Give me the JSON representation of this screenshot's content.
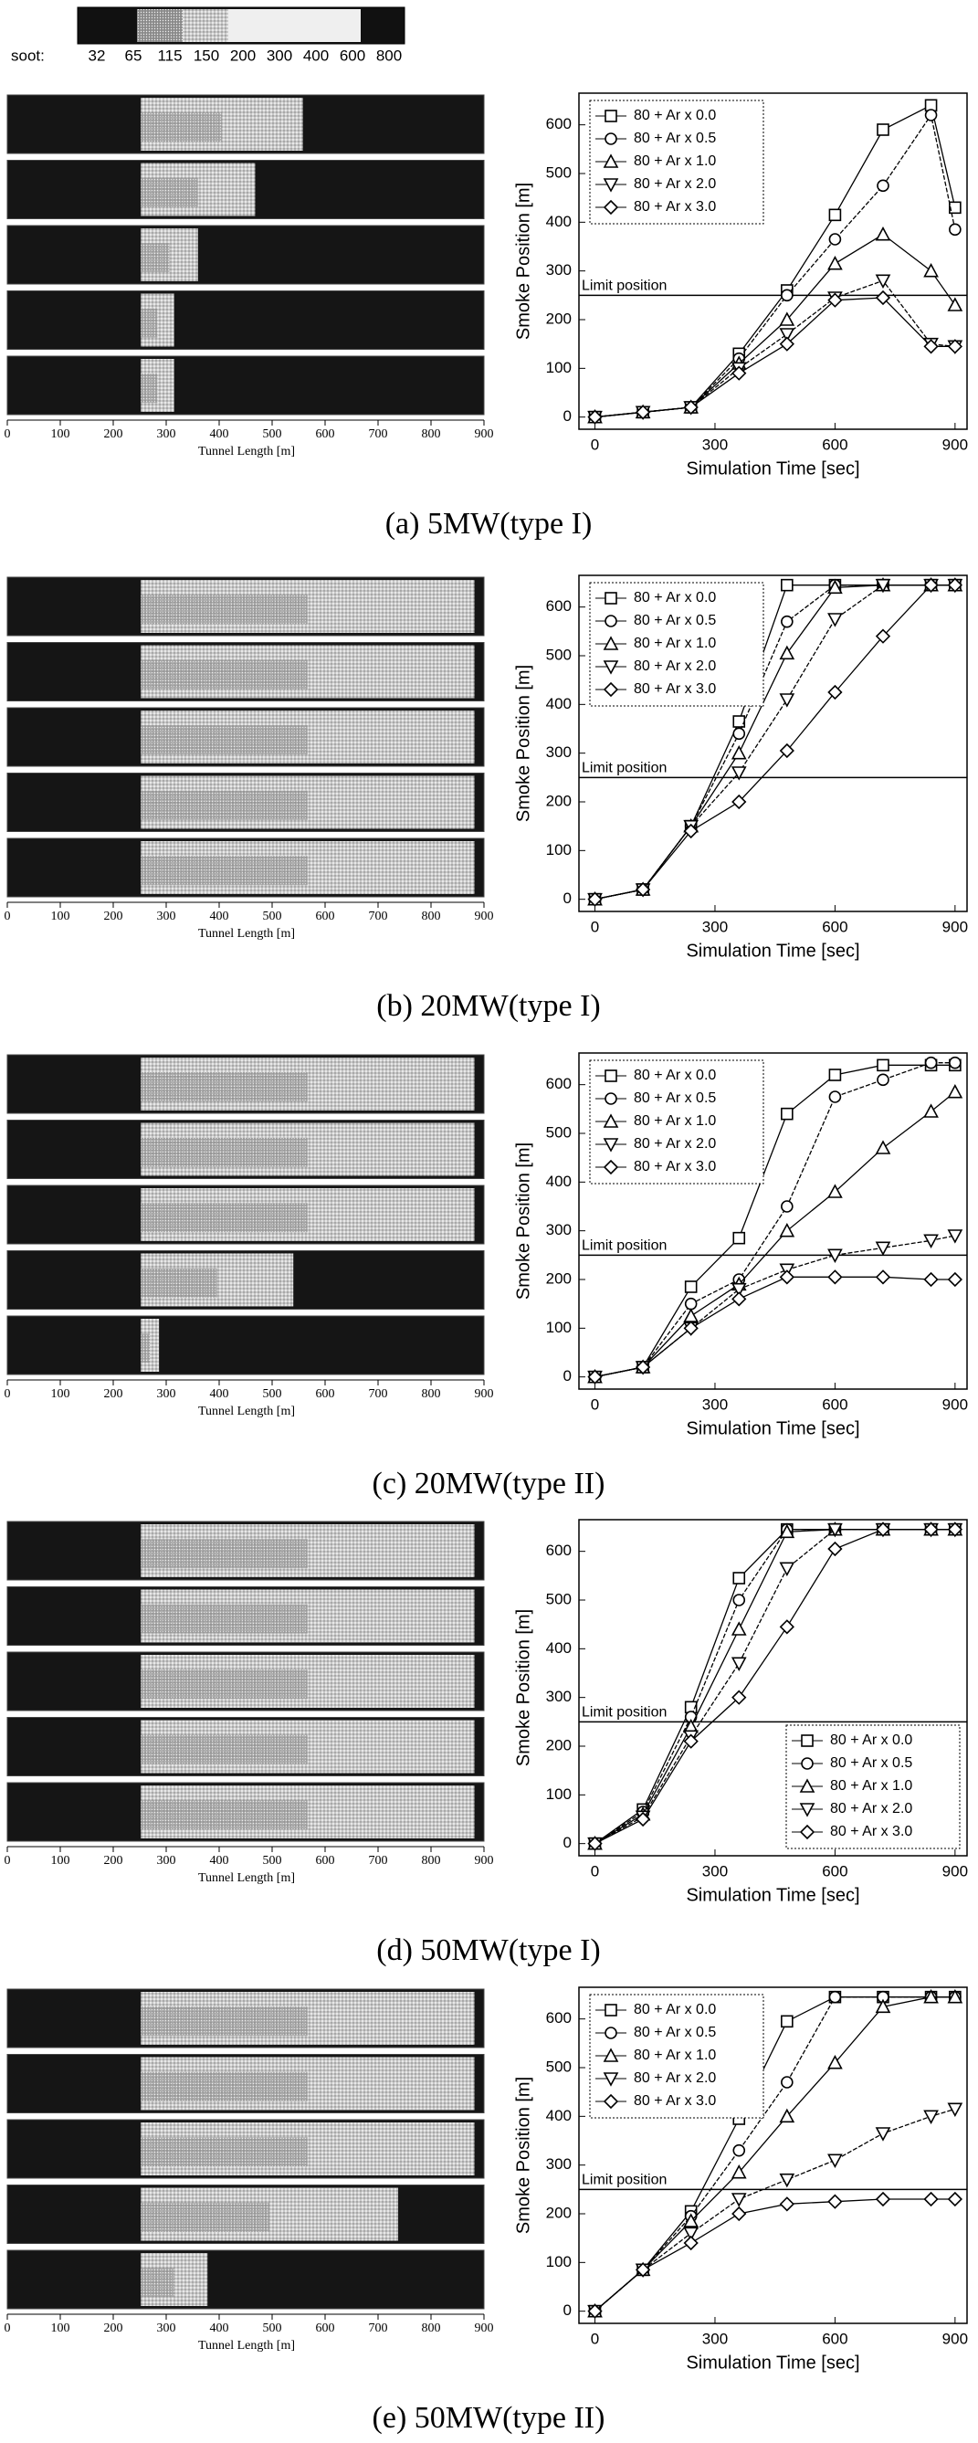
{
  "colorbar": {
    "label": "soot:",
    "ticks": [
      32,
      65,
      115,
      150,
      200,
      300,
      400,
      600,
      800
    ]
  },
  "chart_data": [
    {
      "type": "line",
      "caption": "(a)  5MW(type  I)",
      "xlabel": "Simulation Time [sec]",
      "ylabel": "Smoke Position [m]",
      "x": [
        0,
        120,
        240,
        360,
        480,
        600,
        720,
        840,
        900
      ],
      "xlim": [
        -40,
        930
      ],
      "xticks": [
        0,
        300,
        600,
        900
      ],
      "ylim": [
        -25,
        665
      ],
      "yticks": [
        0,
        100,
        200,
        300,
        400,
        500,
        600
      ],
      "legend": "upper left",
      "hline": {
        "value": 250,
        "label": "Limit position"
      },
      "tunnel": {
        "xlabel": "Tunnel Length [m]",
        "xlim": [
          0,
          900
        ],
        "xticks": [
          0,
          100,
          200,
          300,
          400,
          500,
          600,
          700,
          800,
          900
        ]
      },
      "series": [
        {
          "name": "80 + Ar x 0.0",
          "marker": "square",
          "color": "#000000",
          "values": [
            0,
            10,
            20,
            130,
            260,
            415,
            590,
            640,
            430
          ]
        },
        {
          "name": "80 + Ar x 0.5",
          "marker": "circle",
          "color": "#000000",
          "values": [
            0,
            10,
            20,
            120,
            250,
            365,
            475,
            620,
            385
          ]
        },
        {
          "name": "80 + Ar x 1.0",
          "marker": "triangle-up",
          "color": "#000000",
          "values": [
            0,
            10,
            20,
            110,
            200,
            315,
            375,
            300,
            230
          ]
        },
        {
          "name": "80 + Ar x 2.0",
          "marker": "triangle-down",
          "color": "#000000",
          "values": [
            0,
            10,
            20,
            100,
            170,
            245,
            280,
            150,
            145
          ]
        },
        {
          "name": "80 + Ar x 3.0",
          "marker": "diamond",
          "color": "#000000",
          "values": [
            0,
            10,
            20,
            90,
            150,
            240,
            245,
            145,
            145
          ]
        }
      ]
    },
    {
      "type": "line",
      "caption": "(b)  20MW(type  I)",
      "xlabel": "Simulation Time [sec]",
      "ylabel": "Smoke Position [m]",
      "x": [
        0,
        120,
        240,
        360,
        480,
        600,
        720,
        840,
        900
      ],
      "xlim": [
        -40,
        930
      ],
      "xticks": [
        0,
        300,
        600,
        900
      ],
      "ylim": [
        -25,
        665
      ],
      "yticks": [
        0,
        100,
        200,
        300,
        400,
        500,
        600
      ],
      "legend": "upper left",
      "hline": {
        "value": 250,
        "label": "Limit position"
      },
      "tunnel": {
        "xlabel": "Tunnel Length [m]",
        "xlim": [
          0,
          900
        ],
        "xticks": [
          0,
          100,
          200,
          300,
          400,
          500,
          600,
          700,
          800,
          900
        ]
      },
      "series": [
        {
          "name": "80 + Ar x 0.0",
          "marker": "square",
          "color": "#000000",
          "values": [
            0,
            20,
            150,
            365,
            645,
            645,
            645,
            645,
            645
          ]
        },
        {
          "name": "80 + Ar x 0.5",
          "marker": "circle",
          "color": "#000000",
          "values": [
            0,
            20,
            150,
            340,
            570,
            645,
            645,
            645,
            645
          ]
        },
        {
          "name": "80 + Ar x 1.0",
          "marker": "triangle-up",
          "color": "#000000",
          "values": [
            0,
            20,
            150,
            300,
            505,
            640,
            645,
            645,
            645
          ]
        },
        {
          "name": "80 + Ar x 2.0",
          "marker": "triangle-down",
          "color": "#000000",
          "values": [
            0,
            20,
            150,
            260,
            410,
            575,
            645,
            645,
            645
          ]
        },
        {
          "name": "80 + Ar x 3.0",
          "marker": "diamond",
          "color": "#000000",
          "values": [
            0,
            20,
            140,
            200,
            305,
            425,
            540,
            645,
            645
          ]
        }
      ]
    },
    {
      "type": "line",
      "caption": "(c)  20MW(type  II)",
      "xlabel": "Simulation Time [sec]",
      "ylabel": "Smoke Position [m]",
      "x": [
        0,
        120,
        240,
        360,
        480,
        600,
        720,
        840,
        900
      ],
      "xlim": [
        -40,
        930
      ],
      "xticks": [
        0,
        300,
        600,
        900
      ],
      "ylim": [
        -25,
        665
      ],
      "yticks": [
        0,
        100,
        200,
        300,
        400,
        500,
        600
      ],
      "legend": "upper left",
      "hline": {
        "value": 250,
        "label": "Limit position"
      },
      "tunnel": {
        "xlabel": "Tunnel Length [m]",
        "xlim": [
          0,
          900
        ],
        "xticks": [
          0,
          100,
          200,
          300,
          400,
          500,
          600,
          700,
          800,
          900
        ]
      },
      "series": [
        {
          "name": "80 + Ar x 0.0",
          "marker": "square",
          "color": "#000000",
          "values": [
            0,
            20,
            185,
            285,
            540,
            620,
            640,
            640,
            640
          ]
        },
        {
          "name": "80 + Ar x 0.5",
          "marker": "circle",
          "color": "#000000",
          "values": [
            0,
            20,
            150,
            200,
            350,
            575,
            610,
            645,
            645
          ]
        },
        {
          "name": "80 + Ar x 1.0",
          "marker": "triangle-up",
          "color": "#000000",
          "values": [
            0,
            20,
            125,
            190,
            300,
            380,
            470,
            545,
            585
          ]
        },
        {
          "name": "80 + Ar x 2.0",
          "marker": "triangle-down",
          "color": "#000000",
          "values": [
            0,
            20,
            100,
            180,
            220,
            250,
            265,
            280,
            290
          ]
        },
        {
          "name": "80 + Ar x 3.0",
          "marker": "diamond",
          "color": "#000000",
          "values": [
            0,
            20,
            100,
            160,
            205,
            205,
            205,
            200,
            200
          ]
        }
      ]
    },
    {
      "type": "line",
      "caption": "(d)  50MW(type  I)",
      "xlabel": "Simulation Time [sec]",
      "ylabel": "Smoke Position [m]",
      "x": [
        0,
        120,
        240,
        360,
        480,
        600,
        720,
        840,
        900
      ],
      "xlim": [
        -40,
        930
      ],
      "xticks": [
        0,
        300,
        600,
        900
      ],
      "ylim": [
        -25,
        665
      ],
      "yticks": [
        0,
        100,
        200,
        300,
        400,
        500,
        600
      ],
      "legend": "lower right",
      "hline": {
        "value": 250,
        "label": "Limit position"
      },
      "tunnel": {
        "xlabel": "Tunnel Length [m]",
        "xlim": [
          0,
          900
        ],
        "xticks": [
          0,
          100,
          200,
          300,
          400,
          500,
          600,
          700,
          800,
          900
        ]
      },
      "series": [
        {
          "name": "80 + Ar x 0.0",
          "marker": "square",
          "color": "#000000",
          "values": [
            0,
            70,
            280,
            545,
            645,
            645,
            645,
            645,
            645
          ]
        },
        {
          "name": "80 + Ar x 0.5",
          "marker": "circle",
          "color": "#000000",
          "values": [
            0,
            65,
            260,
            500,
            645,
            645,
            645,
            645,
            645
          ]
        },
        {
          "name": "80 + Ar x 1.0",
          "marker": "triangle-up",
          "color": "#000000",
          "values": [
            0,
            60,
            240,
            440,
            640,
            645,
            645,
            645,
            645
          ]
        },
        {
          "name": "80 + Ar x 2.0",
          "marker": "triangle-down",
          "color": "#000000",
          "values": [
            0,
            55,
            220,
            370,
            565,
            645,
            645,
            645,
            645
          ]
        },
        {
          "name": "80 + Ar x 3.0",
          "marker": "diamond",
          "color": "#000000",
          "values": [
            0,
            50,
            210,
            300,
            445,
            605,
            645,
            645,
            645
          ]
        }
      ]
    },
    {
      "type": "line",
      "caption": "(e)  50MW(type  II)",
      "xlabel": "Simulation Time [sec]",
      "ylabel": "Smoke Position [m]",
      "x": [
        0,
        120,
        240,
        360,
        480,
        600,
        720,
        840,
        900
      ],
      "xlim": [
        -40,
        930
      ],
      "xticks": [
        0,
        300,
        600,
        900
      ],
      "ylim": [
        -25,
        665
      ],
      "yticks": [
        0,
        100,
        200,
        300,
        400,
        500,
        600
      ],
      "legend": "upper left",
      "hline": {
        "value": 250,
        "label": "Limit position"
      },
      "tunnel": {
        "xlabel": "Tunnel Length [m]",
        "xlim": [
          0,
          900
        ],
        "xticks": [
          0,
          100,
          200,
          300,
          400,
          500,
          600,
          700,
          800,
          900
        ]
      },
      "series": [
        {
          "name": "80 + Ar x 0.0",
          "marker": "square",
          "color": "#000000",
          "values": [
            0,
            85,
            205,
            395,
            595,
            645,
            645,
            645,
            645
          ]
        },
        {
          "name": "80 + Ar x 0.5",
          "marker": "circle",
          "color": "#000000",
          "values": [
            0,
            85,
            195,
            330,
            470,
            645,
            645,
            645,
            645
          ]
        },
        {
          "name": "80 + Ar x 1.0",
          "marker": "triangle-up",
          "color": "#000000",
          "values": [
            0,
            85,
            185,
            285,
            400,
            510,
            625,
            645,
            645
          ]
        },
        {
          "name": "80 + Ar x 2.0",
          "marker": "triangle-down",
          "color": "#000000",
          "values": [
            0,
            85,
            160,
            230,
            270,
            310,
            365,
            400,
            415
          ]
        },
        {
          "name": "80 + Ar x 3.0",
          "marker": "diamond",
          "color": "#000000",
          "values": [
            0,
            85,
            140,
            200,
            220,
            225,
            230,
            230,
            230
          ]
        }
      ]
    }
  ]
}
